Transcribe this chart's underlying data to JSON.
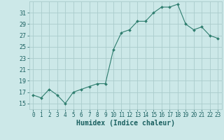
{
  "x": [
    0,
    1,
    2,
    3,
    4,
    5,
    6,
    7,
    8,
    9,
    10,
    11,
    12,
    13,
    14,
    15,
    16,
    17,
    18,
    19,
    20,
    21,
    22,
    23
  ],
  "y": [
    16.5,
    16.0,
    17.5,
    16.5,
    15.0,
    17.0,
    17.5,
    18.0,
    18.5,
    18.5,
    24.5,
    27.5,
    28.0,
    29.5,
    29.5,
    31.0,
    32.0,
    32.0,
    32.5,
    29.0,
    28.0,
    28.5,
    27.0,
    26.5
  ],
  "xlabel": "Humidex (Indice chaleur)",
  "ylim": [
    14,
    33
  ],
  "xlim": [
    -0.5,
    23.5
  ],
  "yticks": [
    15,
    17,
    19,
    21,
    23,
    25,
    27,
    29,
    31
  ],
  "xtick_labels": [
    "0",
    "1",
    "2",
    "3",
    "4",
    "5",
    "6",
    "7",
    "8",
    "9",
    "10",
    "11",
    "12",
    "13",
    "14",
    "15",
    "16",
    "17",
    "18",
    "19",
    "20",
    "21",
    "22",
    "23"
  ],
  "line_color": "#2e7d6e",
  "marker_color": "#2e7d6e",
  "bg_color": "#cce8e8",
  "grid_color": "#aacccc",
  "xlabel_color": "#1a6060",
  "tick_color": "#1a6060"
}
